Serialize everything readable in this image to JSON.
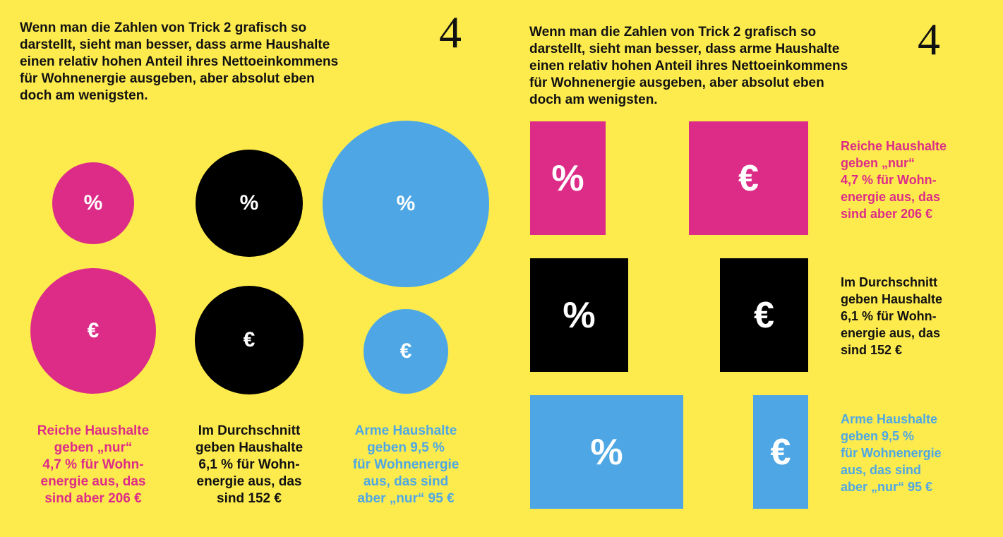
{
  "page_number": "4",
  "intro_text": "Wenn man die Zahlen von Trick 2 grafisch so\ndarstellt, sieht man besser, dass arme Haushalte\neinen relativ hohen Anteil ihres Nettoeinkommens\nfür Wohnenergie ausgeben, aber absolut eben\ndoch am wenigsten.",
  "symbols": {
    "percent": "%",
    "euro": "€"
  },
  "colors": {
    "background": "#fdeb4e",
    "reich": "#dc2c88",
    "durchschnitt": "#000000",
    "arm": "#4ea7e4",
    "text": "#111111"
  },
  "groups": {
    "reich": {
      "share_percent": 4.7,
      "amount_eur": 206,
      "caption_left": "Reiche Haushalte\ngeben „nur“\n4,7 % für Wohn-\nenergie aus, das\nsind aber 206 €",
      "caption_right": "Reiche Haushalte\ngeben „nur“\n4,7 % für Wohn-\nenergie aus, das\nsind aber 206 €"
    },
    "durchschnitt": {
      "share_percent": 6.1,
      "amount_eur": 152,
      "caption_left": "Im Durchschnitt\ngeben Haushalte\n6,1 % für Wohn-\nenergie aus, das\nsind 152 €",
      "caption_right": "Im Durchschnitt\ngeben Haushalte\n6,1 % für Wohn-\nenergie aus, das\nsind 152 €"
    },
    "arm": {
      "share_percent": 9.5,
      "amount_eur": 95,
      "caption_left": "Arme Haushalte\ngeben 9,5 %\nfür Wohnenergie\naus, das sind\naber „nur“ 95 €",
      "caption_right": "Arme Haushalte\ngeben 9,5 %\nfür Wohnenergie\naus, das sind\naber „nur“ 95 €"
    }
  }
}
